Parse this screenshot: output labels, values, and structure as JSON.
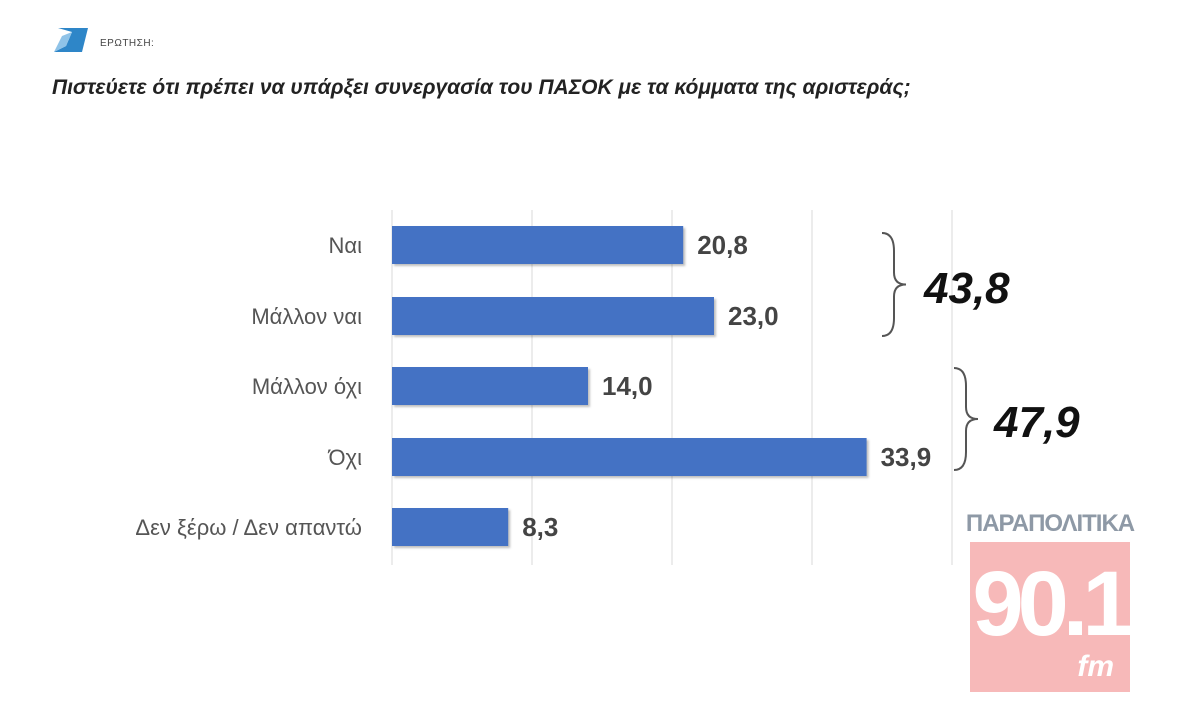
{
  "header": {
    "question_label": "ΕΡΩΤΗΣΗ:",
    "question": "Πιστεύετε ότι πρέπει να υπάρξει συνεργασία του ΠΑΣΟΚ με τα κόμματα της αριστεράς;"
  },
  "chart_data": {
    "type": "bar",
    "orientation": "horizontal",
    "categories": [
      "Ναι",
      "Μάλλον ναι",
      "Μάλλον όχι",
      "Όχι",
      "Δεν ξέρω / Δεν απαντώ"
    ],
    "values": [
      20.8,
      23.0,
      14.0,
      33.9,
      8.3
    ],
    "value_labels": [
      "20,8",
      "23,0",
      "14,0",
      "33,9",
      "8,3"
    ],
    "xlim": [
      0,
      40
    ],
    "grid": true,
    "bar_color": "#4472c4",
    "groups": [
      {
        "total_label": "43,8",
        "members": [
          0,
          1
        ]
      },
      {
        "total_label": "47,9",
        "members": [
          2,
          3
        ]
      }
    ]
  },
  "logo": {
    "top_text": "ΠΑΡΑΠΟΛΙΤΙΚΑ",
    "frequency": "90.1",
    "suffix": "fm",
    "color": "#f7b9b9"
  }
}
